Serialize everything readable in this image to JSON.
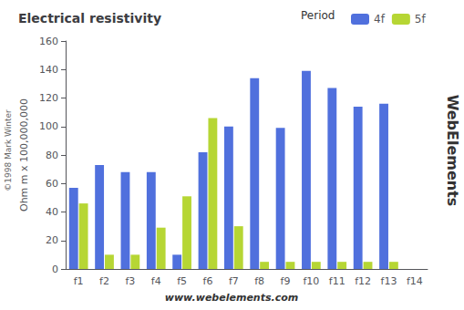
{
  "chart_data": {
    "type": "bar",
    "title": "Electrical resistivity",
    "categories": [
      "f1",
      "f2",
      "f3",
      "f4",
      "f5",
      "f6",
      "f7",
      "f8",
      "f9",
      "f10",
      "f11",
      "f12",
      "f13",
      "f14"
    ],
    "series": [
      {
        "name": "4f",
        "values": [
          57,
          73,
          68,
          68,
          10,
          82,
          100,
          134,
          99,
          139,
          127,
          114,
          116,
          0
        ]
      },
      {
        "name": "5f",
        "values": [
          46,
          10,
          10,
          29,
          51,
          106,
          30,
          5,
          5,
          5,
          5,
          5,
          5,
          0
        ]
      }
    ],
    "ylabel": "Ohm m x 100,000,000",
    "ylim": [
      0,
      160
    ],
    "yticks": [
      0,
      20,
      40,
      60,
      80,
      100,
      120,
      140,
      160
    ],
    "grid": false,
    "legend": "upper right",
    "annotations": [
      "Period",
      "www.webelements.com",
      "WebElements",
      "©1998 Mark Winter"
    ]
  }
}
